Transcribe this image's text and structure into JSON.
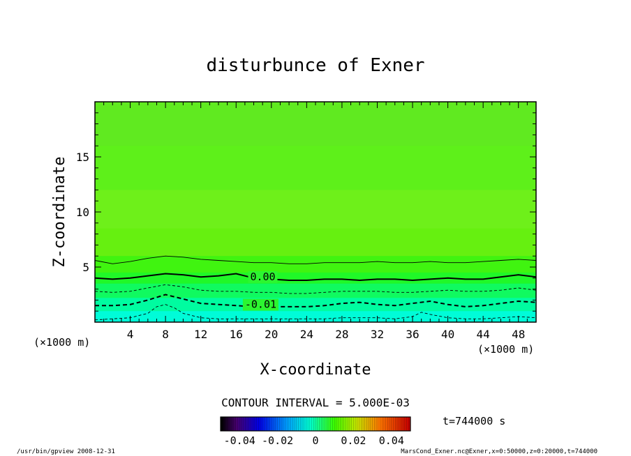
{
  "chart_data": {
    "type": "heatmap",
    "title": "disturbunce of Exner",
    "xlabel": "X-coordinate",
    "ylabel": "Z-coordinate",
    "x_unit": "(×1000 m)",
    "x_unit_left": "(×1000 m)",
    "xlim": [
      0,
      50
    ],
    "ylim": [
      0,
      20
    ],
    "x_ticks": [
      4,
      8,
      12,
      16,
      20,
      24,
      28,
      32,
      36,
      40,
      44,
      48
    ],
    "x_tick_labels": [
      "4",
      "8",
      "12",
      "16",
      "20",
      "24",
      "28",
      "32",
      "36",
      "40",
      "44",
      "48"
    ],
    "y_ticks": [
      5,
      10,
      15
    ],
    "y_tick_labels": [
      "5",
      "10",
      "15"
    ],
    "contour_interval_text": "CONTOUR INTERVAL = 5.000E-03",
    "time_text": "t=744000 s",
    "colorbar": {
      "range": [
        -0.05,
        0.05
      ],
      "ticks": [
        -0.04,
        -0.02,
        0,
        0.02,
        0.04
      ],
      "tick_labels": [
        "-0.04",
        "-0.02",
        "0",
        "0.02",
        "0.04"
      ]
    },
    "contours": [
      {
        "level": 0.005,
        "style": "thin-solid",
        "label": "",
        "x": [
          0,
          2,
          4,
          6,
          8,
          10,
          12,
          14,
          16,
          18,
          20,
          22,
          24,
          26,
          28,
          30,
          32,
          34,
          36,
          38,
          40,
          42,
          44,
          46,
          48,
          50
        ],
        "z": [
          5.6,
          5.3,
          5.5,
          5.8,
          6.0,
          5.9,
          5.7,
          5.6,
          5.5,
          5.4,
          5.4,
          5.3,
          5.3,
          5.4,
          5.4,
          5.4,
          5.5,
          5.4,
          5.4,
          5.5,
          5.4,
          5.4,
          5.5,
          5.6,
          5.7,
          5.6
        ]
      },
      {
        "level": 0.0,
        "style": "thick-solid",
        "label": "0.00",
        "x": [
          0,
          2,
          4,
          6,
          8,
          10,
          12,
          14,
          16,
          18,
          20,
          22,
          24,
          26,
          28,
          30,
          32,
          34,
          36,
          38,
          40,
          42,
          44,
          46,
          48,
          50
        ],
        "z": [
          4.0,
          3.9,
          4.0,
          4.2,
          4.4,
          4.3,
          4.1,
          4.2,
          4.4,
          4.0,
          3.9,
          3.8,
          3.8,
          3.9,
          3.9,
          3.8,
          3.9,
          3.9,
          3.8,
          3.9,
          4.0,
          3.9,
          3.9,
          4.1,
          4.3,
          4.1
        ]
      },
      {
        "level": -0.005,
        "style": "thin-dashed",
        "label": "",
        "x": [
          0,
          2,
          4,
          6,
          8,
          10,
          12,
          14,
          16,
          18,
          20,
          22,
          24,
          26,
          28,
          30,
          32,
          34,
          36,
          38,
          40,
          42,
          44,
          46,
          48,
          50
        ],
        "z": [
          2.8,
          2.7,
          2.8,
          3.1,
          3.4,
          3.2,
          2.9,
          2.8,
          2.8,
          2.7,
          2.7,
          2.6,
          2.6,
          2.7,
          2.8,
          2.8,
          2.8,
          2.7,
          2.7,
          2.8,
          2.9,
          2.8,
          2.8,
          2.9,
          3.1,
          2.9
        ]
      },
      {
        "level": -0.01,
        "style": "thick-dashed",
        "label": "-0.01",
        "x": [
          0,
          2,
          4,
          6,
          8,
          10,
          12,
          14,
          16,
          18,
          20,
          22,
          24,
          26,
          28,
          30,
          32,
          34,
          36,
          38,
          40,
          42,
          44,
          46,
          48,
          50
        ],
        "z": [
          1.5,
          1.5,
          1.6,
          2.0,
          2.5,
          2.1,
          1.7,
          1.6,
          1.5,
          1.4,
          1.4,
          1.4,
          1.4,
          1.5,
          1.7,
          1.8,
          1.6,
          1.5,
          1.7,
          1.9,
          1.6,
          1.4,
          1.5,
          1.7,
          1.9,
          1.8
        ]
      },
      {
        "level": -0.015,
        "style": "thin-dashed",
        "label": "",
        "x": [
          0,
          2,
          4,
          6,
          7,
          8,
          9,
          10,
          12,
          14,
          16,
          18,
          20,
          22,
          24,
          26,
          28,
          30,
          32,
          34,
          36,
          37,
          38,
          40,
          42,
          44,
          46,
          48,
          50
        ],
        "z": [
          0.2,
          0.3,
          0.4,
          0.8,
          1.4,
          1.6,
          1.3,
          0.8,
          0.4,
          0.3,
          0.3,
          0.3,
          0.3,
          0.3,
          0.3,
          0.3,
          0.4,
          0.4,
          0.4,
          0.3,
          0.5,
          0.9,
          0.7,
          0.4,
          0.3,
          0.3,
          0.4,
          0.5,
          0.4
        ]
      }
    ],
    "contour_labels": [
      {
        "text": "0.00",
        "x": 17.6,
        "z": 3.8
      },
      {
        "text": "-0.01",
        "x": 17.0,
        "z": 1.3
      }
    ],
    "fill_bands": [
      {
        "z_top": 20,
        "color": "#60ea20"
      },
      {
        "z_top": 16,
        "color": "#5ef01a"
      },
      {
        "z_top": 12,
        "color": "#6ef01a"
      },
      {
        "z_top": 8.5,
        "color": "#66f010"
      },
      {
        "z_top": 6.0,
        "color": "#40f410"
      },
      {
        "z_top": 4.5,
        "color": "#20f828"
      },
      {
        "z_top": 3.5,
        "color": "#10fa60"
      },
      {
        "z_top": 2.2,
        "color": "#00fca0"
      },
      {
        "z_top": 1.0,
        "color": "#00fcd8"
      }
    ]
  },
  "footer": {
    "left": "/usr/bin/gpview   2008-12-31",
    "right": "MarsCond_Exner.nc@Exner,x=0:50000,z=0:20000,t=744000"
  }
}
